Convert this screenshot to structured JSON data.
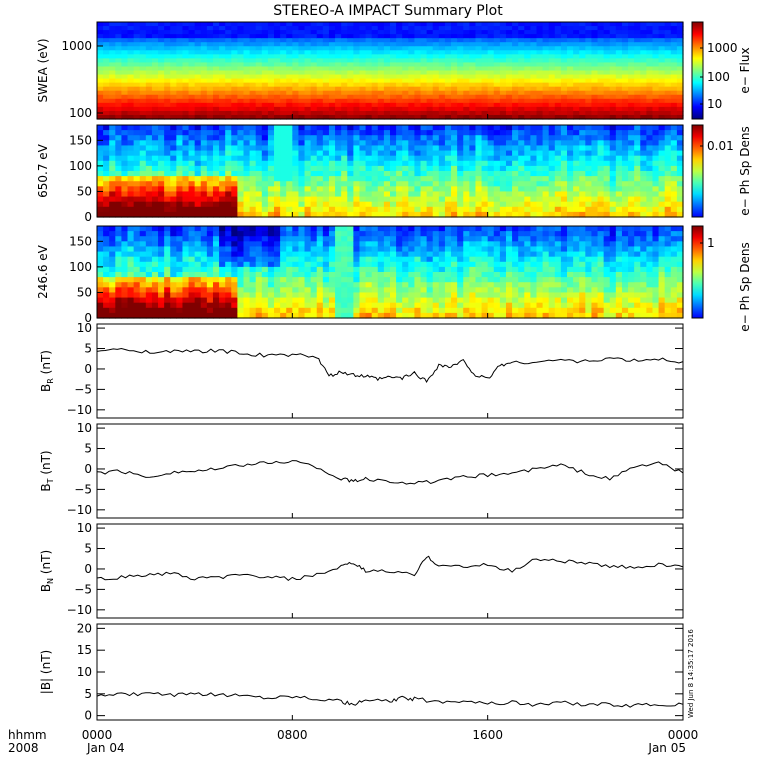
{
  "title": "STEREO-A IMPACT Summary Plot",
  "footer": {
    "time_label": "hhmm",
    "year_label": "2008",
    "x_ticks": [
      {
        "time": "0000",
        "date": "Jan 04"
      },
      {
        "time": "0800",
        "date": ""
      },
      {
        "time": "1600",
        "date": ""
      },
      {
        "time": "0000",
        "date": "Jan 05"
      }
    ],
    "timestamp": "Wed Jun  8 14:35:17 2016"
  },
  "chart_data": [
    {
      "type": "heatmap",
      "id": "swea",
      "ylabel": "SWEA (eV)",
      "yscale": "log",
      "yticks": [
        "1000",
        "100"
      ],
      "colorbar_label": "e− Flux",
      "colorbar_ticks": [
        "1000",
        "100",
        "10"
      ]
    },
    {
      "type": "heatmap",
      "id": "pad650",
      "ylabel": "650.7 eV",
      "ylim": [
        0,
        180
      ],
      "yticks": [
        "150",
        "100",
        "50",
        "0"
      ],
      "colorbar_label": "e− Ph Sp Dens",
      "colorbar_ticks": [
        "0.01"
      ]
    },
    {
      "type": "heatmap",
      "id": "pad246",
      "ylabel": "246.6 eV",
      "ylim": [
        0,
        180
      ],
      "yticks": [
        "150",
        "100",
        "50",
        "0"
      ],
      "colorbar_label": "e− Ph Sp Dens",
      "colorbar_ticks": [
        "1"
      ]
    },
    {
      "type": "line",
      "id": "br",
      "ylabel": "B",
      "ylabel_sub": "R",
      "ylabel_unit": "(nT)",
      "ylim": [
        -12,
        11
      ],
      "yticks": [
        "10",
        "5",
        "0",
        "−5",
        "−10"
      ],
      "x_hours": [
        0,
        1,
        2,
        3,
        4,
        5,
        6,
        7,
        8,
        9,
        9.5,
        10,
        10.5,
        11,
        11.5,
        12,
        12.5,
        13,
        13.5,
        14,
        14.5,
        15,
        15.5,
        16,
        16.5,
        17,
        18,
        19,
        20,
        21,
        22,
        23,
        24
      ],
      "values": [
        4.5,
        4.7,
        4.3,
        4.2,
        4.3,
        4.5,
        3.8,
        3.2,
        3.5,
        3.0,
        -1.8,
        -0.8,
        -1.5,
        -1.8,
        -2.5,
        -2.0,
        -2.2,
        -1.0,
        -3.0,
        1.0,
        0.5,
        2.0,
        -1.5,
        -2.5,
        1.0,
        1.5,
        1.8,
        2.2,
        1.8,
        2.6,
        2.0,
        2.4,
        1.8
      ]
    },
    {
      "type": "line",
      "id": "bt",
      "ylabel": "B",
      "ylabel_sub": "T",
      "ylabel_unit": "(nT)",
      "ylim": [
        -12,
        11
      ],
      "yticks": [
        "10",
        "5",
        "0",
        "−5",
        "−10"
      ],
      "x_hours": [
        0,
        1,
        2,
        3,
        4,
        5,
        6,
        7,
        8,
        9,
        10,
        10.5,
        11,
        12,
        13,
        14,
        15,
        16,
        17,
        18,
        19,
        20,
        21,
        22,
        23,
        24
      ],
      "values": [
        -1.0,
        -0.5,
        -2.0,
        -0.8,
        -0.5,
        0.0,
        1.0,
        1.5,
        2.0,
        0.5,
        -2.5,
        -3.0,
        -2.5,
        -3.0,
        -3.5,
        -3.0,
        -2.0,
        -1.5,
        -1.0,
        0.0,
        1.0,
        -1.0,
        -2.5,
        0.5,
        1.5,
        -1.0
      ]
    },
    {
      "type": "line",
      "id": "bn",
      "ylabel": "B",
      "ylabel_sub": "N",
      "ylabel_unit": "(nT)",
      "ylim": [
        -12,
        11
      ],
      "yticks": [
        "10",
        "5",
        "0",
        "−5",
        "−10"
      ],
      "x_hours": [
        0,
        1,
        2,
        3,
        4,
        5,
        6,
        7,
        8,
        9,
        10,
        10.5,
        11,
        12,
        13,
        13.5,
        14,
        15,
        16,
        17,
        18,
        19,
        20,
        21,
        22,
        23,
        24
      ],
      "values": [
        -2.5,
        -2.0,
        -1.5,
        -1.0,
        -2.5,
        -2.0,
        -1.5,
        -2.0,
        -2.5,
        -1.5,
        0.5,
        1.5,
        -0.5,
        -0.5,
        -1.5,
        3.0,
        1.0,
        0.5,
        1.0,
        -0.5,
        2.5,
        2.0,
        1.5,
        0.5,
        0.5,
        1.0,
        0.5
      ]
    },
    {
      "type": "line",
      "id": "bmag",
      "ylabel": "|B| (nT)",
      "ylim": [
        -1,
        21
      ],
      "yticks": [
        "20",
        "15",
        "10",
        "5",
        "0"
      ],
      "x_hours": [
        0,
        1,
        2,
        3,
        4,
        5,
        6,
        7,
        8,
        9,
        10,
        10.5,
        11,
        12,
        12.5,
        13,
        14,
        15,
        16,
        17,
        18,
        19,
        20,
        21,
        22,
        23,
        24
      ],
      "values": [
        4.8,
        4.8,
        5.0,
        4.7,
        4.8,
        4.9,
        4.6,
        4.2,
        4.5,
        4.0,
        3.2,
        2.5,
        3.5,
        3.3,
        4.0,
        3.8,
        3.2,
        3.5,
        2.8,
        3.0,
        2.5,
        3.0,
        2.6,
        2.5,
        2.3,
        2.5,
        2.6
      ]
    }
  ]
}
